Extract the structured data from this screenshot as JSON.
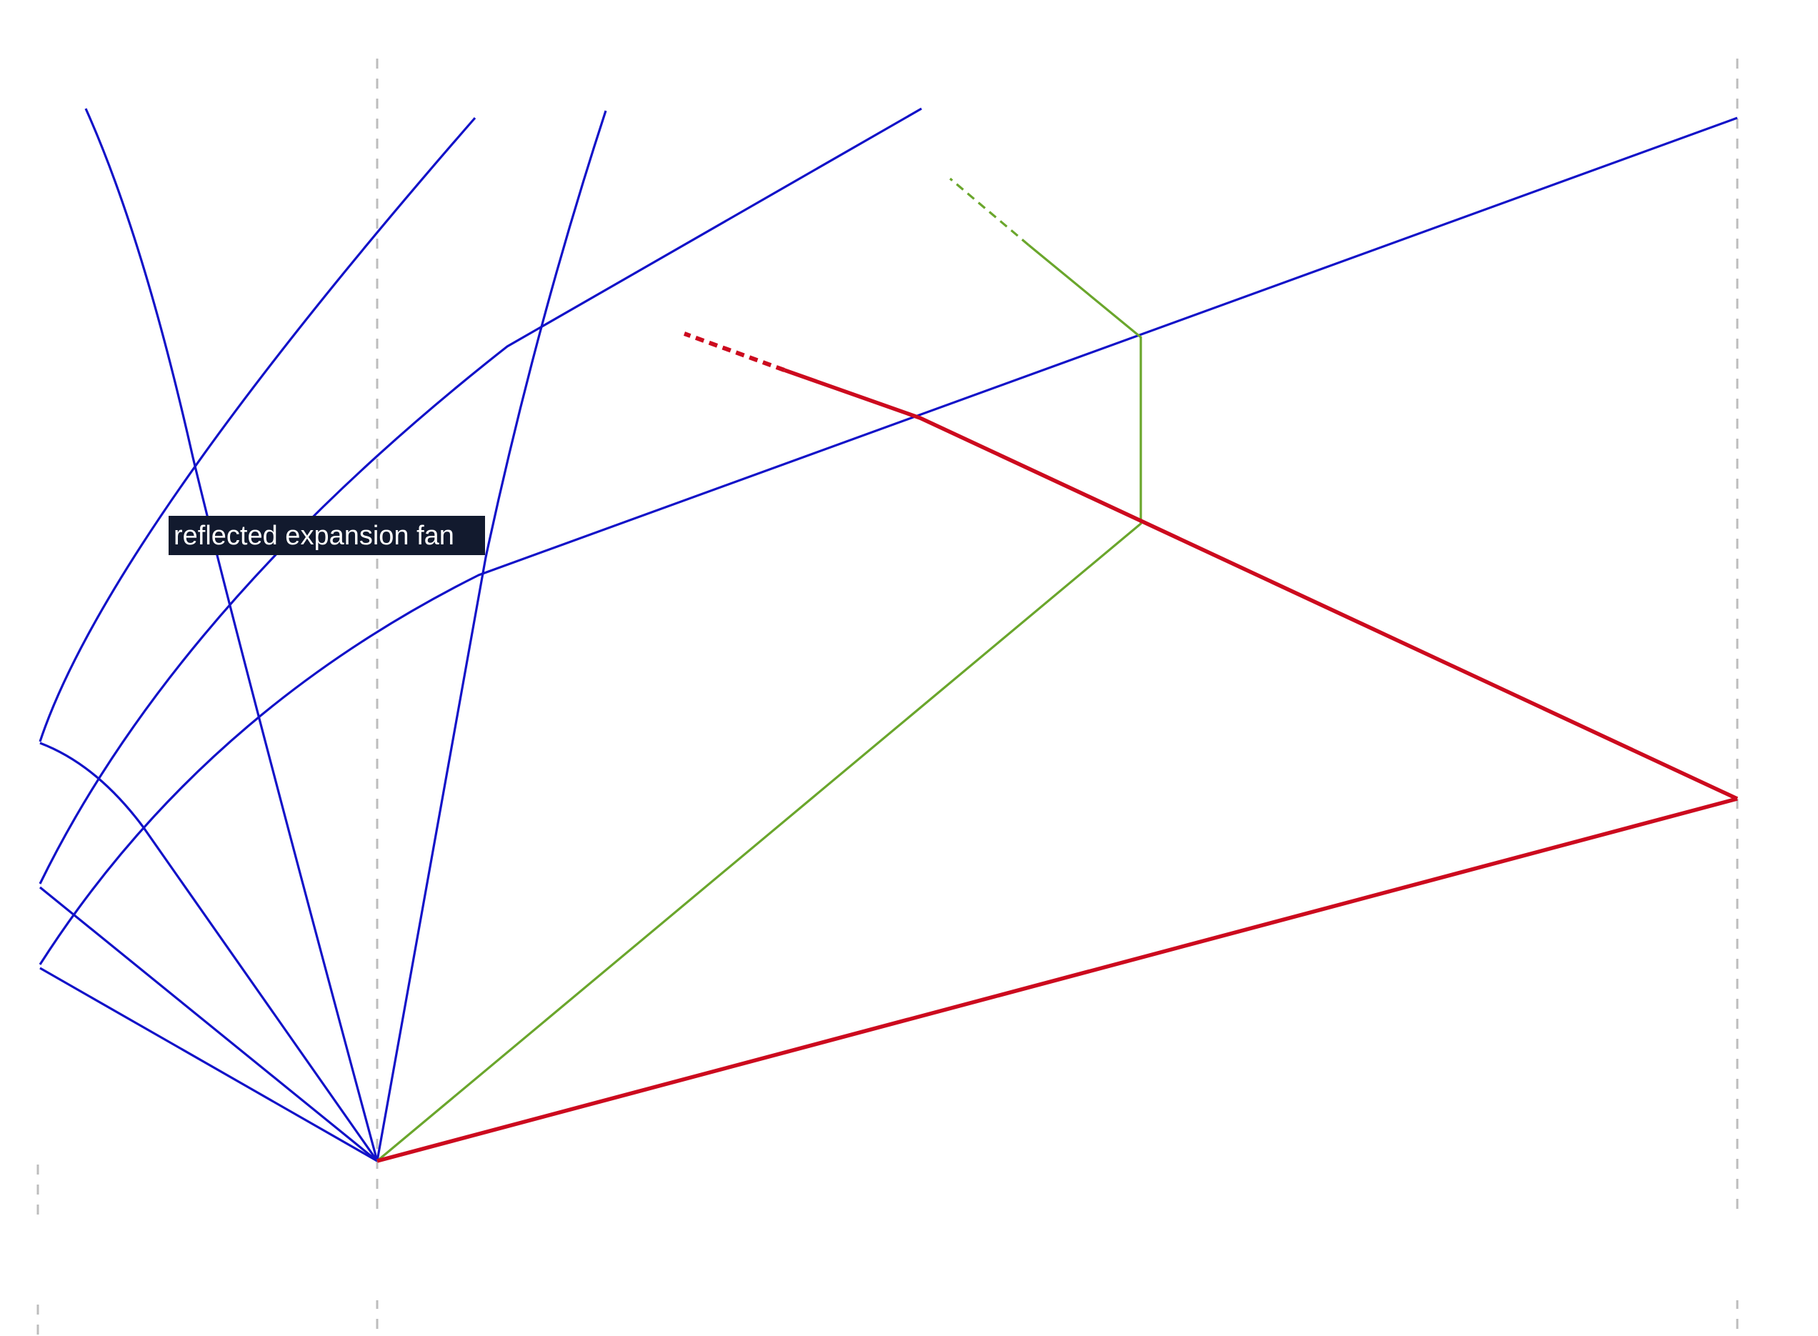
{
  "annotations": {
    "fan_label": "reflected expansion fan"
  },
  "colors": {
    "background": "#ffffff",
    "guide_lines": "#bdbdbd",
    "expansion_fan": "#1212c8",
    "contact_discontinuity": "#6aa62c",
    "shock": "#cc0a1e",
    "label_background": "#121a2e",
    "label_text": "#ffffff"
  },
  "legend": []
}
